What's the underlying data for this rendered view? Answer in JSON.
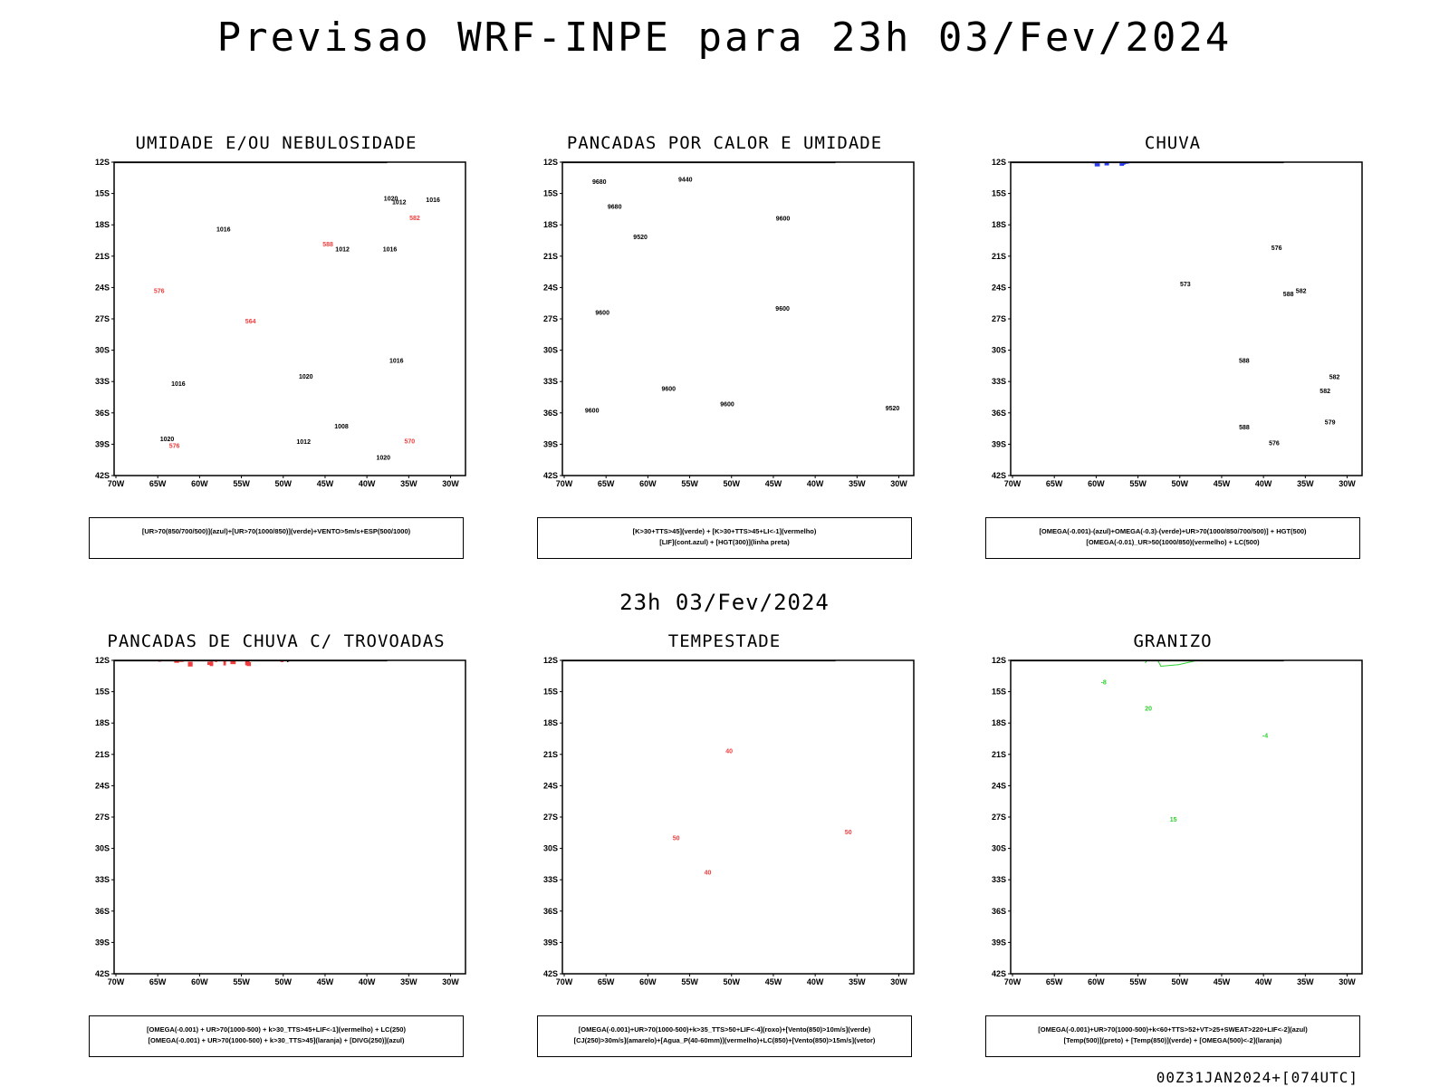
{
  "main_title": "Previsao WRF-INPE  para 23h 03/Fev/2024",
  "mid_title": "23h 03/Fev/2024",
  "footer": "00Z31JAN2024+[074UTC]",
  "axes": {
    "lat_labels": [
      "12S",
      "15S",
      "18S",
      "21S",
      "24S",
      "27S",
      "30S",
      "33S",
      "36S",
      "39S",
      "42S"
    ],
    "lon_labels": [
      "70W",
      "65W",
      "60W",
      "55W",
      "50W",
      "45W",
      "40W",
      "35W",
      "30W"
    ]
  },
  "colors": {
    "red": "#f23c3c",
    "green": "#2bd12b",
    "blue": "#2b3cf2",
    "lavender": "#b4b4f0",
    "teal": "#3c6e64",
    "yellow": "#e6d23c",
    "purple": "#a03cc8",
    "orange": "#f08c28"
  },
  "panels": [
    {
      "title": "UMIDADE E/OU NEBULOSIDADE",
      "legend_lines": [
        "[UR>70(850/700/500)](azul)+[UR>70(1000/850)](verde)+VENTO>5m/s+ESP(500/1000)"
      ],
      "contour_labels": [
        "1012",
        "1016",
        "1016",
        "1016",
        "1016",
        "1012",
        "1020",
        "1020",
        "1008",
        "1016",
        "1020",
        "1012",
        "1020",
        "570",
        "576",
        "582",
        "564",
        "588",
        "576"
      ]
    },
    {
      "title": "PANCADAS POR CALOR E UMIDADE",
      "legend_lines": [
        "[K>30+TTS>45](verde) + [K>30+TTS>45+LI<-1](vermelho)",
        "[LIF](cont.azul) + [HGT(300)](linha preta)"
      ],
      "contour_labels": [
        "9680",
        "9600",
        "9600",
        "9600",
        "9600",
        "9680",
        "9600",
        "9520",
        "9440",
        "9520",
        "9600"
      ]
    },
    {
      "title": "CHUVA",
      "legend_lines": [
        "[OMEGA(-0.001)-(azul)+OMEGA(-0.3)-(verde)+UR>70(1000/850/700/500)] + HGT(500)",
        "[OMEGA(-0.01)_UR>50(1000/850)(vermelho) + LC(500)"
      ],
      "contour_labels": [
        "588",
        "582",
        "588",
        "582",
        "588",
        "576",
        "582",
        "573",
        "579",
        "576"
      ]
    },
    {
      "title": "PANCADAS DE CHUVA C/ TROVOADAS",
      "legend_lines": [
        "[OMEGA(-0.001) + UR>70(1000-500) + k>30_TTS>45+LIF<-1](vermelho) + LC(250)",
        "[OMEGA(-0.001) + UR>70(1000-500) + k>30_TTS>45](laranja) + [DIVG(250)](azul)"
      ],
      "contour_labels": []
    },
    {
      "title": "TEMPESTADE",
      "legend_lines": [
        "[OMEGA(-0.001)+UR>70(1000-500)+k>35_TTS>50+LIF<-4](roxo)+[Vento(850)>10m/s](verde)",
        "[CJ(250)>30m/s](amarelo)+[Agua_P(40-60mm)](vermelho)+LC(850)+[Vento(850)>15m/s](vetor)"
      ],
      "contour_labels": [
        "40",
        "50",
        "50",
        "40"
      ]
    },
    {
      "title": "GRANIZO",
      "legend_lines": [
        "[OMEGA(-0.001)+UR>70(1000-500)+k<60+TTS>52+VT>25+SWEAT>220+LIF<-2](azul)",
        "[Temp(500)](preto) + [Temp(850)](verde) + [OMEGA(500)<-2](laranja)"
      ],
      "contour_labels": [
        "-4",
        "15",
        "20",
        "-8"
      ]
    }
  ]
}
